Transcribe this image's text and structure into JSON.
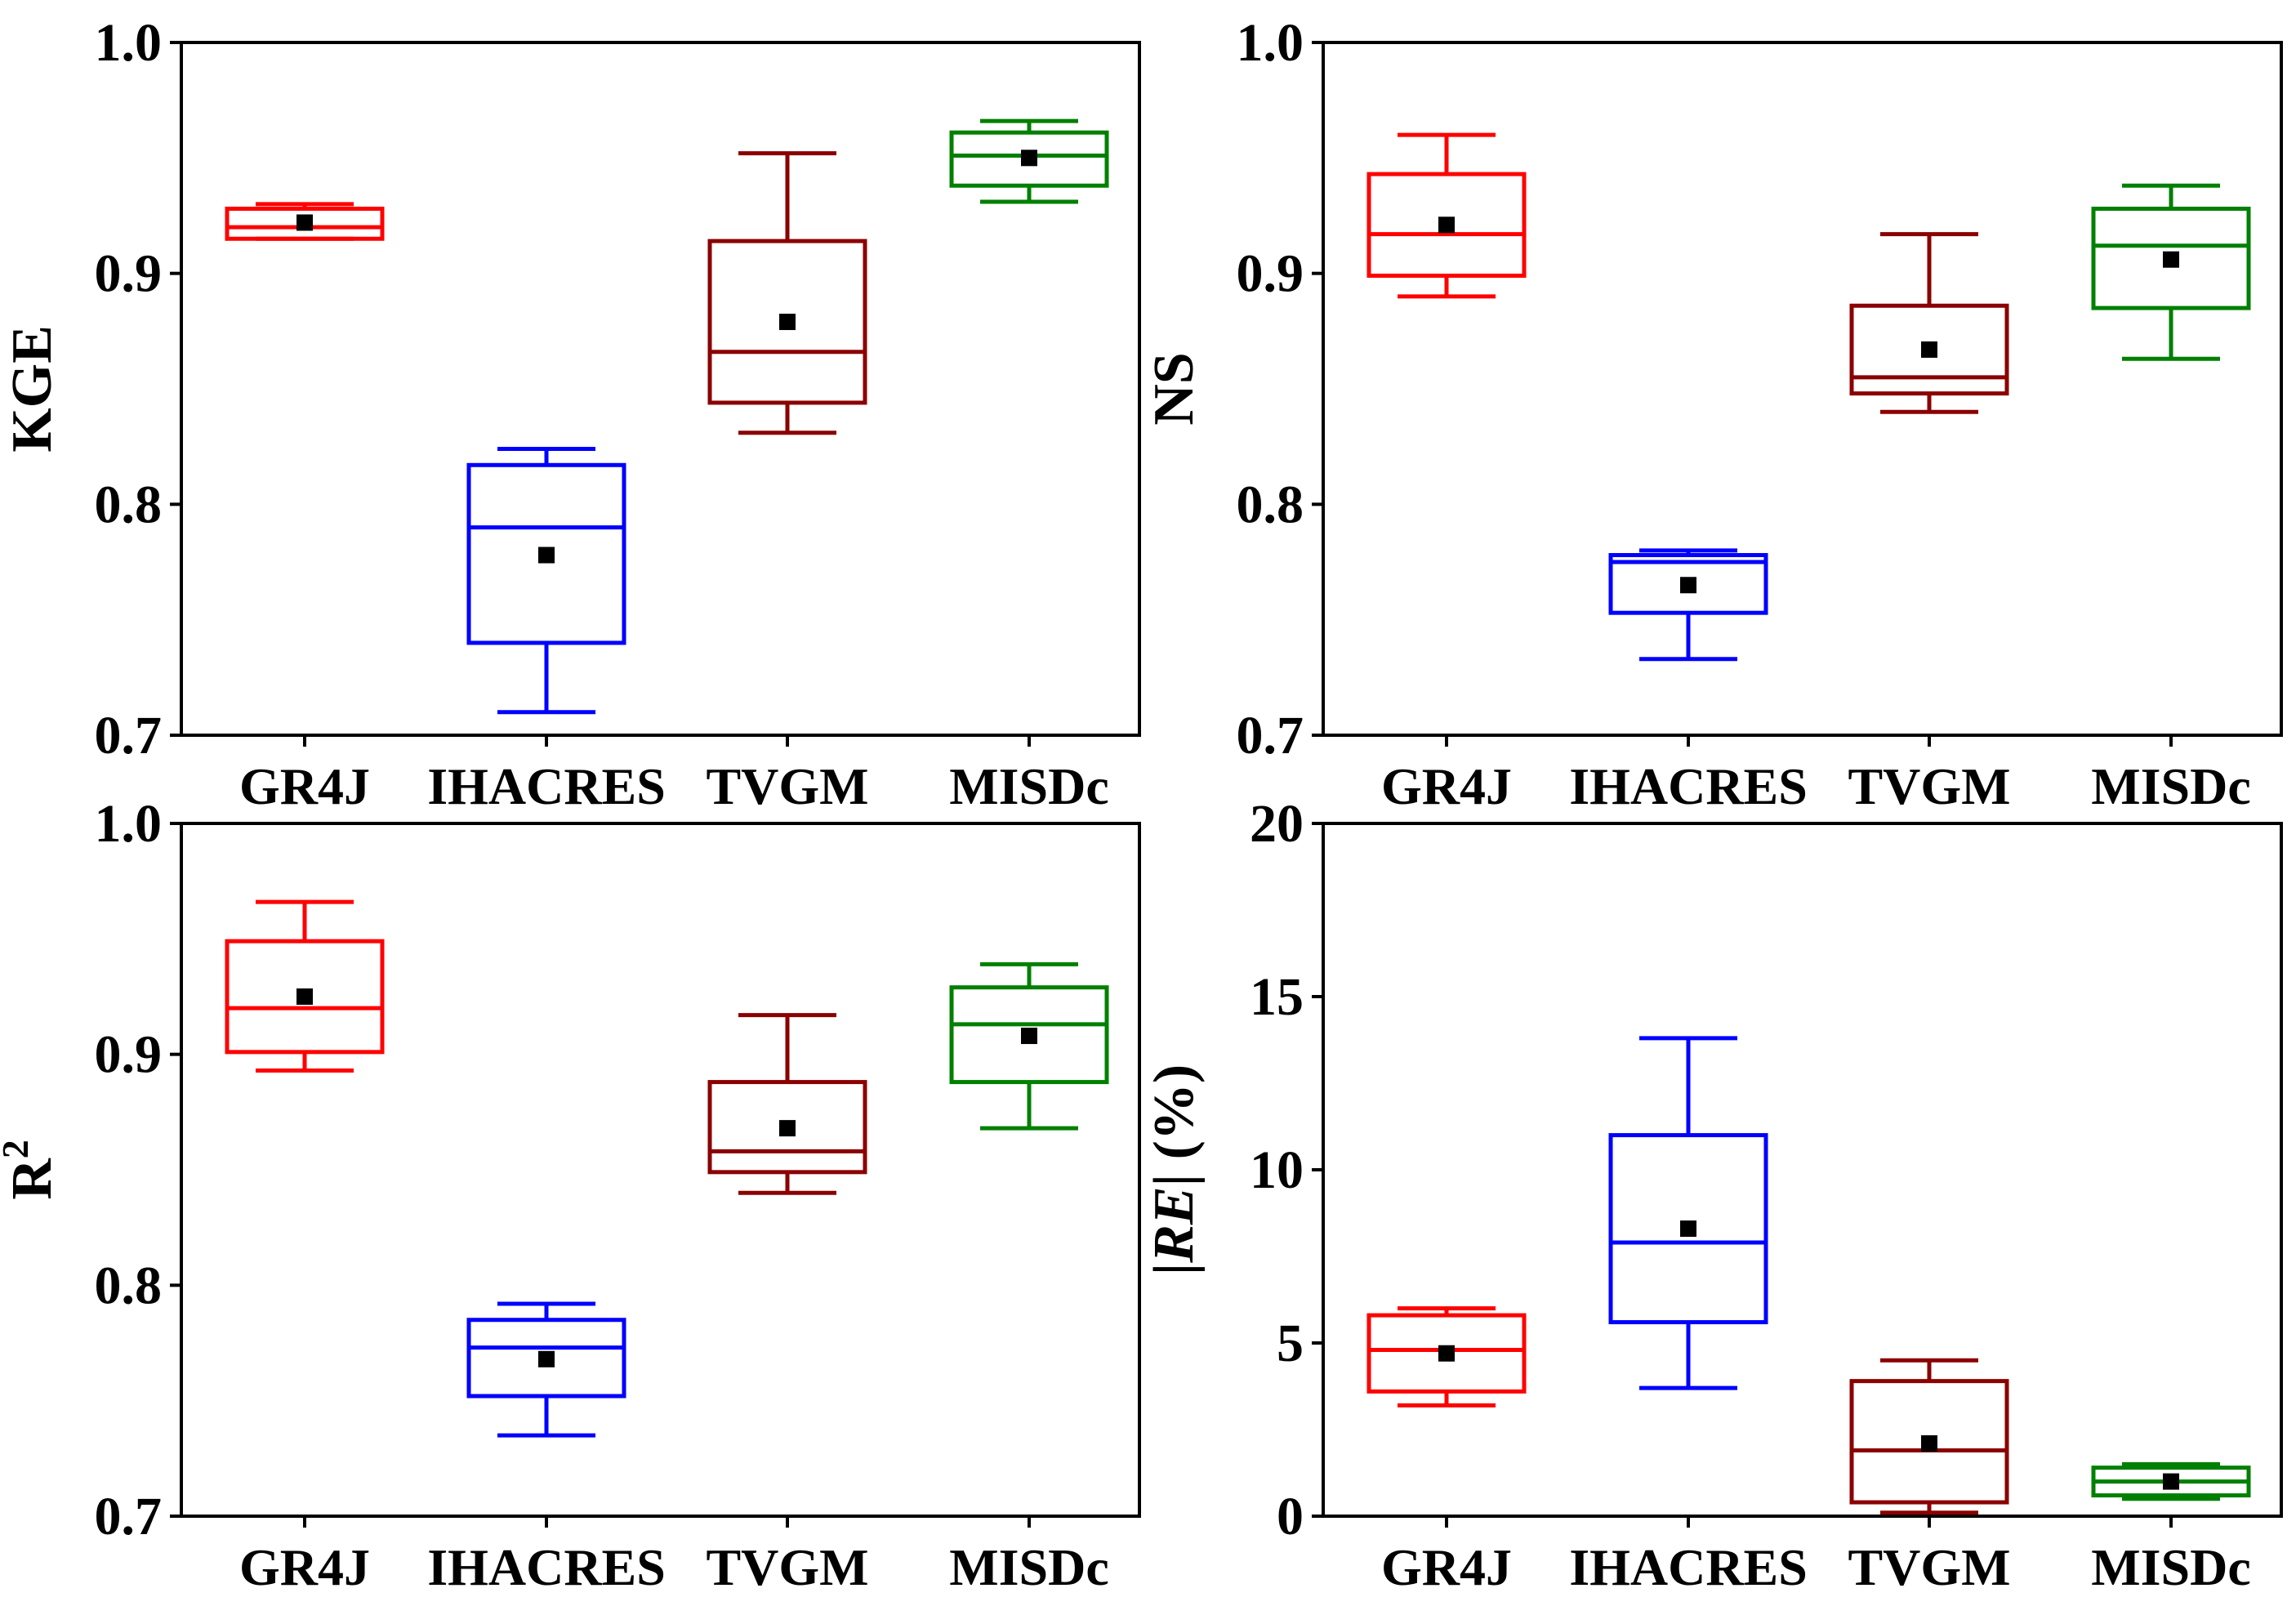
{
  "colors": {
    "GR4J": "#ff0000",
    "IHACRES": "#0000ff",
    "TVGM": "#8b0000",
    "MISDc": "#008000"
  },
  "chart_data": [
    {
      "type": "box",
      "title": "",
      "xlabel": "",
      "ylabel": "KGE",
      "ylim": [
        0.7,
        1.0
      ],
      "yticks": [
        "0.7",
        "0.8",
        "0.9",
        "1.0"
      ],
      "ytick_values": [
        0.7,
        0.8,
        0.9,
        1.0
      ],
      "categories": [
        "GR4J",
        "IHACRES",
        "TVGM",
        "MISDc"
      ],
      "boxes": [
        {
          "name": "GR4J",
          "whisker_low": 0.915,
          "q1": 0.915,
          "median": 0.92,
          "q3": 0.928,
          "whisker_high": 0.93,
          "mean": 0.922
        },
        {
          "name": "IHACRES",
          "whisker_low": 0.71,
          "q1": 0.74,
          "median": 0.79,
          "q3": 0.817,
          "whisker_high": 0.824,
          "mean": 0.778
        },
        {
          "name": "TVGM",
          "whisker_low": 0.831,
          "q1": 0.844,
          "median": 0.866,
          "q3": 0.914,
          "whisker_high": 0.952,
          "mean": 0.879
        },
        {
          "name": "MISDc",
          "whisker_low": 0.931,
          "q1": 0.938,
          "median": 0.951,
          "q3": 0.961,
          "whisker_high": 0.966,
          "mean": 0.95
        }
      ]
    },
    {
      "type": "box",
      "title": "",
      "xlabel": "",
      "ylabel": "NS",
      "ylim": [
        0.7,
        1.0
      ],
      "yticks": [
        "0.7",
        "0.8",
        "0.9",
        "1.0"
      ],
      "ytick_values": [
        0.7,
        0.8,
        0.9,
        1.0
      ],
      "categories": [
        "GR4J",
        "IHACRES",
        "TVGM",
        "MISDc"
      ],
      "boxes": [
        {
          "name": "GR4J",
          "whisker_low": 0.89,
          "q1": 0.899,
          "median": 0.917,
          "q3": 0.943,
          "whisker_high": 0.96,
          "mean": 0.921
        },
        {
          "name": "IHACRES",
          "whisker_low": 0.733,
          "q1": 0.753,
          "median": 0.775,
          "q3": 0.778,
          "whisker_high": 0.78,
          "mean": 0.765
        },
        {
          "name": "TVGM",
          "whisker_low": 0.84,
          "q1": 0.848,
          "median": 0.855,
          "q3": 0.886,
          "whisker_high": 0.917,
          "mean": 0.867
        },
        {
          "name": "MISDc",
          "whisker_low": 0.863,
          "q1": 0.885,
          "median": 0.912,
          "q3": 0.928,
          "whisker_high": 0.938,
          "mean": 0.906
        }
      ]
    },
    {
      "type": "box",
      "title": "",
      "xlabel": "",
      "ylabel": "R",
      "ylabel_sup": "2",
      "ylim": [
        0.7,
        1.0
      ],
      "yticks": [
        "0.7",
        "0.8",
        "0.9",
        "1.0"
      ],
      "ytick_values": [
        0.7,
        0.8,
        0.9,
        1.0
      ],
      "categories": [
        "GR4J",
        "IHACRES",
        "TVGM",
        "MISDc"
      ],
      "boxes": [
        {
          "name": "GR4J",
          "whisker_low": 0.893,
          "q1": 0.901,
          "median": 0.92,
          "q3": 0.949,
          "whisker_high": 0.966,
          "mean": 0.925
        },
        {
          "name": "IHACRES",
          "whisker_low": 0.735,
          "q1": 0.752,
          "median": 0.773,
          "q3": 0.785,
          "whisker_high": 0.792,
          "mean": 0.768
        },
        {
          "name": "TVGM",
          "whisker_low": 0.84,
          "q1": 0.849,
          "median": 0.858,
          "q3": 0.888,
          "whisker_high": 0.917,
          "mean": 0.868
        },
        {
          "name": "MISDc",
          "whisker_low": 0.868,
          "q1": 0.888,
          "median": 0.913,
          "q3": 0.929,
          "whisker_high": 0.939,
          "mean": 0.908
        }
      ]
    },
    {
      "type": "box",
      "title": "",
      "xlabel": "",
      "ylabel_parts": [
        "|",
        "RE",
        "| (%)"
      ],
      "ylim": [
        0,
        20
      ],
      "yticks": [
        "0",
        "5",
        "10",
        "15",
        "20"
      ],
      "ytick_values": [
        0,
        5,
        10,
        15,
        20
      ],
      "categories": [
        "GR4J",
        "IHACRES",
        "TVGM",
        "MISDc"
      ],
      "boxes": [
        {
          "name": "GR4J",
          "whisker_low": 3.2,
          "q1": 3.6,
          "median": 4.8,
          "q3": 5.8,
          "whisker_high": 6.0,
          "mean": 4.7
        },
        {
          "name": "IHACRES",
          "whisker_low": 3.7,
          "q1": 5.6,
          "median": 7.9,
          "q3": 11.0,
          "whisker_high": 13.8,
          "mean": 8.3
        },
        {
          "name": "TVGM",
          "whisker_low": 0.1,
          "q1": 0.4,
          "median": 1.9,
          "q3": 3.9,
          "whisker_high": 4.5,
          "mean": 2.1
        },
        {
          "name": "MISDc",
          "whisker_low": 0.5,
          "q1": 0.6,
          "median": 1.0,
          "q3": 1.4,
          "whisker_high": 1.5,
          "mean": 1.0
        }
      ]
    }
  ]
}
